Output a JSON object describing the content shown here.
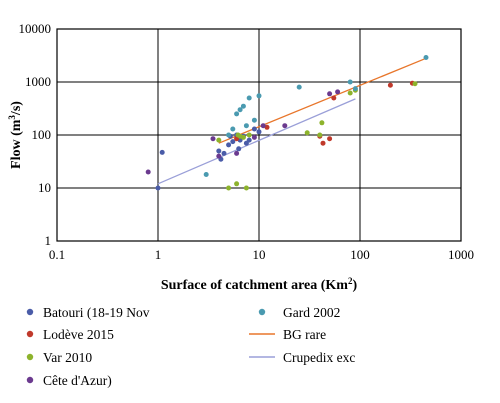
{
  "chart_data": {
    "type": "scatter",
    "x_scale": "log",
    "y_scale": "log",
    "xlim": [
      0.1,
      1000
    ],
    "ylim": [
      1,
      10000
    ],
    "xticks": [
      "0.1",
      "1",
      "10",
      "100",
      "1000"
    ],
    "yticks": [
      "1",
      "10",
      "100",
      "1000",
      "10000"
    ],
    "xlabel": {
      "main": "Surface of catchment area (Km",
      "sup": "2",
      "tail": ")"
    },
    "ylabel": {
      "main": "Flow (m",
      "sup": "3",
      "tail": "/s)"
    },
    "grid": true,
    "legend_position": "bottom",
    "series": [
      {
        "name": "Batouri (18-19 Nov",
        "kind": "points",
        "color": "#4a5ca8",
        "points": [
          [
            1,
            10
          ],
          [
            1.1,
            47
          ],
          [
            4,
            50
          ],
          [
            4.2,
            35
          ],
          [
            4.5,
            45
          ],
          [
            5,
            65
          ],
          [
            5.2,
            95
          ],
          [
            5.5,
            75
          ],
          [
            6,
            100
          ],
          [
            6.3,
            55
          ],
          [
            6.5,
            80
          ],
          [
            7,
            95
          ],
          [
            7.5,
            70
          ],
          [
            8,
            80
          ],
          [
            9,
            130
          ],
          [
            10,
            115
          ]
        ]
      },
      {
        "name": "Lodève 2015",
        "kind": "points",
        "color": "#c0392b",
        "points": [
          [
            6,
            85
          ],
          [
            12,
            140
          ],
          [
            40,
            95
          ],
          [
            43,
            70
          ],
          [
            50,
            85
          ],
          [
            55,
            500
          ],
          [
            200,
            870
          ],
          [
            330,
            950
          ]
        ]
      },
      {
        "name": "Var 2010",
        "kind": "points",
        "color": "#8db32c",
        "points": [
          [
            4,
            80
          ],
          [
            5,
            10
          ],
          [
            6,
            12
          ],
          [
            6.2,
            100
          ],
          [
            6.5,
            95
          ],
          [
            7,
            90
          ],
          [
            7.5,
            10
          ],
          [
            8,
            100
          ],
          [
            30,
            110
          ],
          [
            40,
            100
          ],
          [
            42,
            170
          ],
          [
            80,
            620
          ],
          [
            90,
            700
          ],
          [
            350,
            930
          ]
        ]
      },
      {
        "name": "Cête d'Azur)",
        "kind": "points",
        "color": "#6b3a8f",
        "points": [
          [
            0.8,
            20
          ],
          [
            3.5,
            85
          ],
          [
            4,
            40
          ],
          [
            6,
            45
          ],
          [
            9,
            90
          ],
          [
            11,
            150
          ],
          [
            18,
            150
          ],
          [
            50,
            600
          ],
          [
            60,
            650
          ]
        ]
      },
      {
        "name": "Gard 2002",
        "kind": "points",
        "color": "#4a9ab0",
        "points": [
          [
            3,
            18
          ],
          [
            5,
            100
          ],
          [
            5.5,
            130
          ],
          [
            6,
            250
          ],
          [
            6.5,
            300
          ],
          [
            7,
            350
          ],
          [
            7.5,
            150
          ],
          [
            8,
            500
          ],
          [
            9,
            190
          ],
          [
            10,
            550
          ],
          [
            25,
            800
          ],
          [
            80,
            1000
          ],
          [
            90,
            750
          ],
          [
            450,
            2900
          ]
        ]
      },
      {
        "name": "BG rare",
        "kind": "line",
        "color": "#e8762b",
        "points": [
          [
            4,
            70
          ],
          [
            450,
            2800
          ]
        ]
      },
      {
        "name": "Crupedix exc",
        "kind": "line",
        "color": "#9a9fd8",
        "points": [
          [
            1,
            12
          ],
          [
            90,
            480
          ]
        ]
      }
    ]
  }
}
